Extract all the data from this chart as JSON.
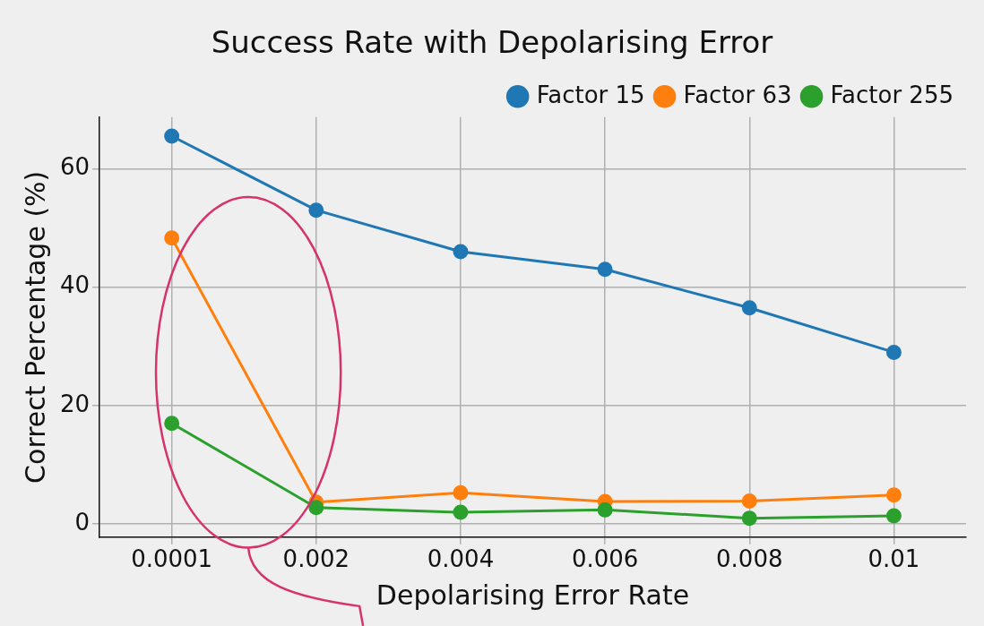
{
  "chart_data": {
    "type": "line",
    "title": "Success Rate with Depolarising Error",
    "xlabel": "Depolarising Error Rate",
    "ylabel": "Correct Percentage (%)",
    "categories": [
      "0.0001",
      "0.002",
      "0.004",
      "0.006",
      "0.008",
      "0.01"
    ],
    "series": [
      {
        "name": "Factor 15",
        "color": "#1f77b4",
        "values": [
          65.5,
          53,
          46,
          43,
          36.5,
          29
        ]
      },
      {
        "name": "Factor 63",
        "color": "#ff7f0e",
        "values": [
          48.3,
          3.7,
          5.3,
          3.8,
          3.9,
          4.9
        ]
      },
      {
        "name": "Factor 255",
        "color": "#2ca02c",
        "values": [
          17,
          2.8,
          2.0,
          2.4,
          1.0,
          1.4
        ]
      }
    ],
    "ylim": [
      -2.2,
      68.7
    ],
    "yticks": [
      0,
      20,
      40,
      60
    ],
    "grid": true,
    "legend": "top right",
    "marker": "circle",
    "line_style": "solid"
  }
}
